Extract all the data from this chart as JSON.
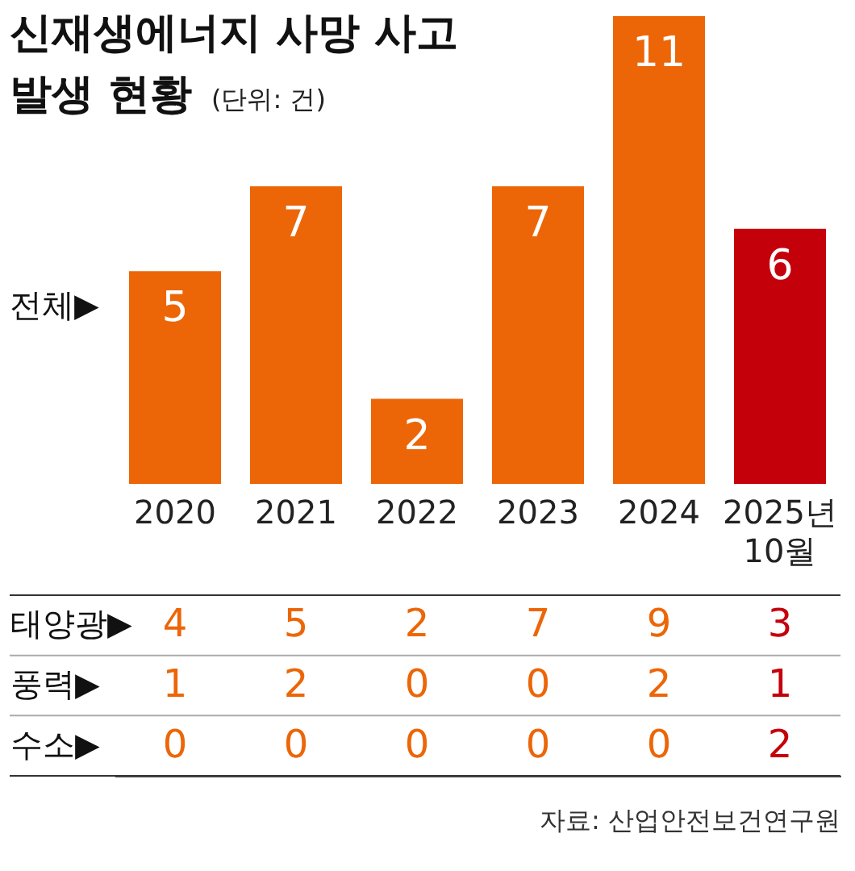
{
  "chart_data": [
    {
      "type": "bar",
      "title": "신재생에너지 사망 사고 발생 현황",
      "subtitle": "(단위: 건)",
      "categories": [
        "2020",
        "2021",
        "2022",
        "2023",
        "2024",
        "2025년 10월"
      ],
      "values": [
        5,
        7,
        2,
        7,
        11,
        6
      ],
      "colors": [
        "#ec6608",
        "#ec6608",
        "#ec6608",
        "#ec6608",
        "#ec6608",
        "#c4000b"
      ],
      "data_labels": true,
      "annotations": [
        "전체▶"
      ],
      "tick_labels": "x"
    },
    {
      "type": "heatmap",
      "categories": [
        null,
        null,
        null,
        null,
        null,
        null
      ],
      "y_categories": [
        "태양광▶",
        "풍력▶",
        "수소▶"
      ],
      "cells": [
        [
          4,
          5,
          2,
          7,
          9,
          3
        ],
        [
          1,
          2,
          0,
          0,
          2,
          1
        ],
        [
          0,
          0,
          0,
          0,
          0,
          2
        ]
      ],
      "colors": [
        "#ec6608",
        "#ec6608",
        "#ec6608",
        "#ec6608",
        "#ec6608",
        "#c4000b"
      ],
      "tick_labels": "y",
      "data_labels": true,
      "annotations": [
        "자료: 산업안전보건연구원"
      ]
    }
  ]
}
